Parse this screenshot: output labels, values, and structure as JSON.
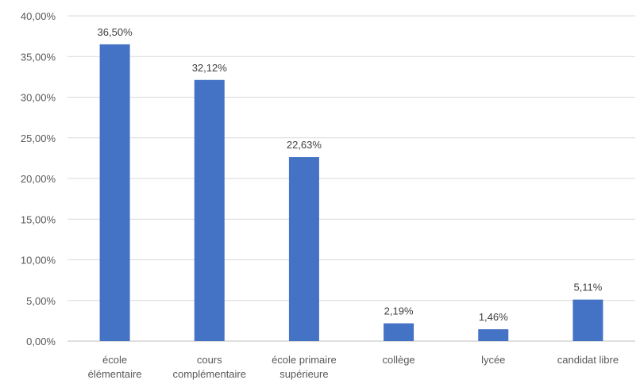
{
  "chart_data": {
    "type": "bar",
    "title": "",
    "xlabel": "",
    "ylabel": "",
    "categories": [
      [
        "école",
        "élémentaire"
      ],
      [
        "cours",
        "complémentaire"
      ],
      [
        "école primaire",
        "supérieure"
      ],
      [
        "collège"
      ],
      [
        "lycée"
      ],
      [
        "candidat libre"
      ]
    ],
    "values": [
      36.5,
      32.12,
      22.63,
      2.19,
      1.46,
      5.11
    ],
    "value_labels": [
      "36,50%",
      "32,12%",
      "22,63%",
      "2,19%",
      "1,46%",
      "5,11%"
    ],
    "ylim": [
      0,
      40
    ],
    "y_ticks": [
      0,
      5,
      10,
      15,
      20,
      25,
      30,
      35,
      40
    ],
    "y_tick_labels": [
      "0,00%",
      "5,00%",
      "10,00%",
      "15,00%",
      "20,00%",
      "25,00%",
      "30,00%",
      "35,00%",
      "40,00%"
    ],
    "grid": true,
    "legend": "none",
    "bar_color": "#4472c4"
  }
}
